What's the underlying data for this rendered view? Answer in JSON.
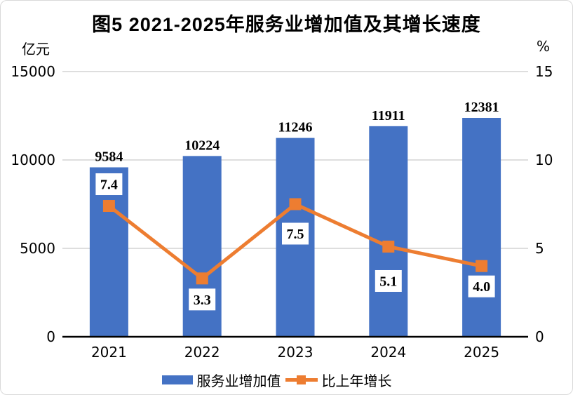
{
  "chart_data": {
    "type": "bar+line combo",
    "title": "图5 2021-2025年服务业增加值及其增长速度",
    "categories": [
      "2021",
      "2022",
      "2023",
      "2024",
      "2025"
    ],
    "series": [
      {
        "name": "服务业增加值",
        "type": "bar",
        "axis": "left",
        "color": "#4472C4",
        "values": [
          9584,
          10224,
          11246,
          11911,
          12381
        ],
        "value_labels": [
          "9584",
          "10224",
          "11246",
          "11911",
          "12381"
        ]
      },
      {
        "name": "比上年增长",
        "type": "line",
        "axis": "right",
        "color": "#ED7D31",
        "values": [
          7.4,
          3.3,
          7.5,
          5.1,
          4.0
        ],
        "value_labels": [
          "7.4",
          "3.3",
          "7.5",
          "5.1",
          "4.0"
        ]
      }
    ],
    "left_axis": {
      "unit": "亿元",
      "ticks": [
        0,
        5000,
        10000,
        15000
      ],
      "ylim": [
        0,
        15000
      ]
    },
    "right_axis": {
      "unit": "%",
      "ticks": [
        0,
        5,
        10,
        15
      ],
      "ylim": [
        0,
        15
      ]
    },
    "line_label_offsets": [
      -31,
      30,
      42,
      49,
      29
    ],
    "grid_color": "#D9D9D9",
    "axis_color": "#000000",
    "label_box_color": "#FFFFFF",
    "text_color": "#000000",
    "legend_position": "bottom",
    "grid": "horizontal-only"
  }
}
